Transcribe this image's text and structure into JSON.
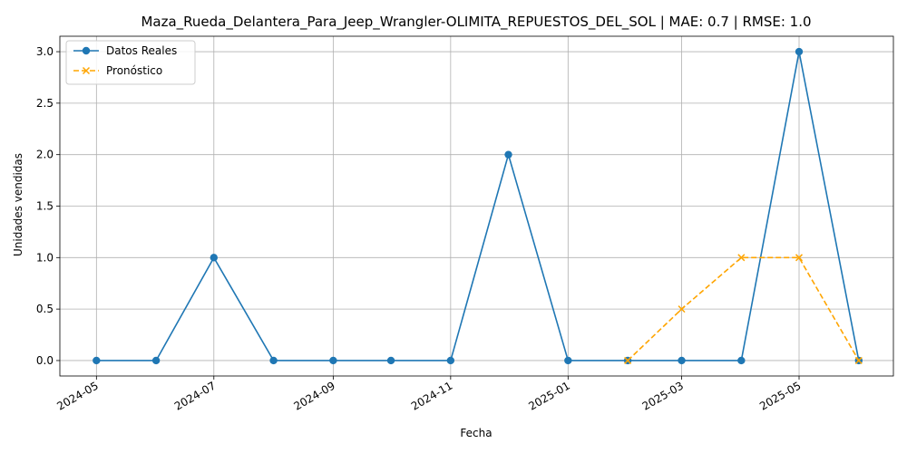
{
  "chart_data": {
    "type": "line",
    "title": "Maza_Rueda_Delantera_Para_Jeep_Wrangler-OLIMITA_REPUESTOS_DEL_SOL | MAE: 0.7 | RMSE: 1.0",
    "xlabel": "Fecha",
    "ylabel": "Unidades vendidas",
    "xlim": [
      "2024-04-12",
      "2025-06-19"
    ],
    "ylim": [
      -0.15,
      3.15
    ],
    "x_ticks": [
      "2024-05",
      "2024-07",
      "2024-09",
      "2024-11",
      "2025-01",
      "2025-03",
      "2025-05"
    ],
    "y_ticks": [
      "0.0",
      "0.5",
      "1.0",
      "1.5",
      "2.0",
      "2.5",
      "3.0"
    ],
    "grid": true,
    "legend_position": "top-left",
    "series": [
      {
        "name": "Datos Reales",
        "color": "#1f77b4",
        "line_style": "solid",
        "marker": "circle",
        "x": [
          "2024-05-01",
          "2024-06-01",
          "2024-07-01",
          "2024-08-01",
          "2024-09-01",
          "2024-10-01",
          "2024-11-01",
          "2024-12-01",
          "2025-01-01",
          "2025-02-01",
          "2025-03-01",
          "2025-04-01",
          "2025-05-01",
          "2025-06-01"
        ],
        "values": [
          0,
          0,
          1,
          0,
          0,
          0,
          0,
          2,
          0,
          0,
          0,
          0,
          3,
          0
        ]
      },
      {
        "name": "Pronóstico",
        "color": "#ffa500",
        "line_style": "dashed",
        "marker": "x",
        "x": [
          "2025-02-01",
          "2025-03-01",
          "2025-04-01",
          "2025-05-01",
          "2025-06-01"
        ],
        "values": [
          0,
          0.5,
          1,
          1,
          0
        ]
      }
    ]
  }
}
